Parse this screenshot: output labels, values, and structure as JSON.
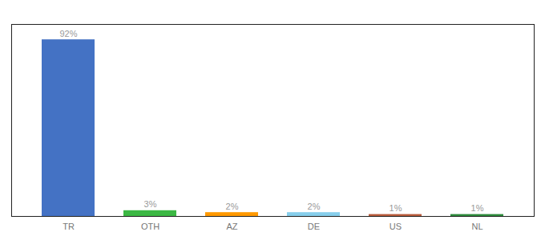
{
  "chart_data": {
    "type": "bar",
    "categories": [
      "TR",
      "OTH",
      "AZ",
      "DE",
      "US",
      "NL"
    ],
    "values": [
      92,
      3,
      2,
      2,
      1,
      1
    ],
    "value_labels": [
      "92%",
      "3%",
      "2%",
      "2%",
      "1%",
      "1%"
    ],
    "colors": [
      "#4472C4",
      "#3CB844",
      "#FF9900",
      "#87CEEB",
      "#B85C3C",
      "#2E8B3C"
    ],
    "ylim": [
      0,
      100
    ],
    "data_labels": true,
    "tick_labels": "x",
    "grid": false
  }
}
